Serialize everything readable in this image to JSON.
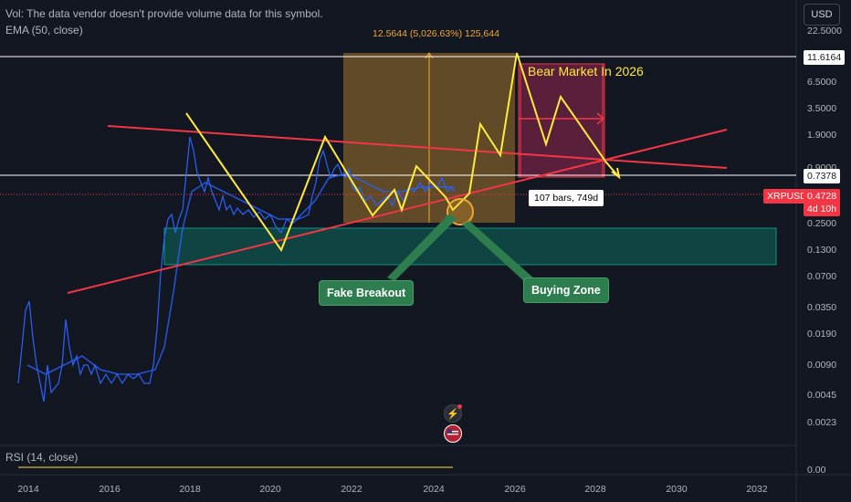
{
  "legend": {
    "vol": "Vol: The data vendor doesn't provide volume data for this symbol.",
    "ema": "EMA (50, close)",
    "rsi": "RSI (14, close)"
  },
  "currency_button": "USD",
  "price_axis": [
    "22.5000",
    "6.5000",
    "3.5000",
    "1.9000",
    "0.9000",
    "0.2500",
    "0.1300",
    "0.0700",
    "0.0350",
    "0.0190",
    "0.0090",
    "0.0045",
    "0.0023"
  ],
  "rsi_axis": "0.00",
  "tags": {
    "high_line": "11.6164",
    "mid_line": "0.7378",
    "symbol": "XRPUSD",
    "last_price": "0.4728",
    "countdown": "4d 10h"
  },
  "time_axis": [
    "2014",
    "2016",
    "2018",
    "2020",
    "2022",
    "2024",
    "2026",
    "2028",
    "2030",
    "2032"
  ],
  "annotations": {
    "measure": "12.5644 (5,026.63%) 125,644",
    "bear_market": "Bear Market In 2026",
    "bars_count": "107 bars, 749d",
    "fake_breakout": "Fake Breakout",
    "buying_zone": "Buying Zone"
  },
  "icons": {
    "flash": "lightning-icon",
    "flag": "us-flag-icon"
  },
  "colors": {
    "background": "#131722",
    "price_line": "#2962ff",
    "ema": "#2962ff",
    "projection": "#ffeb3b",
    "trendline": "#f23645",
    "zone": "#089981",
    "measure_box": "#f0a830",
    "callout": "#2e7d4f",
    "tag_red": "#f23645"
  }
}
